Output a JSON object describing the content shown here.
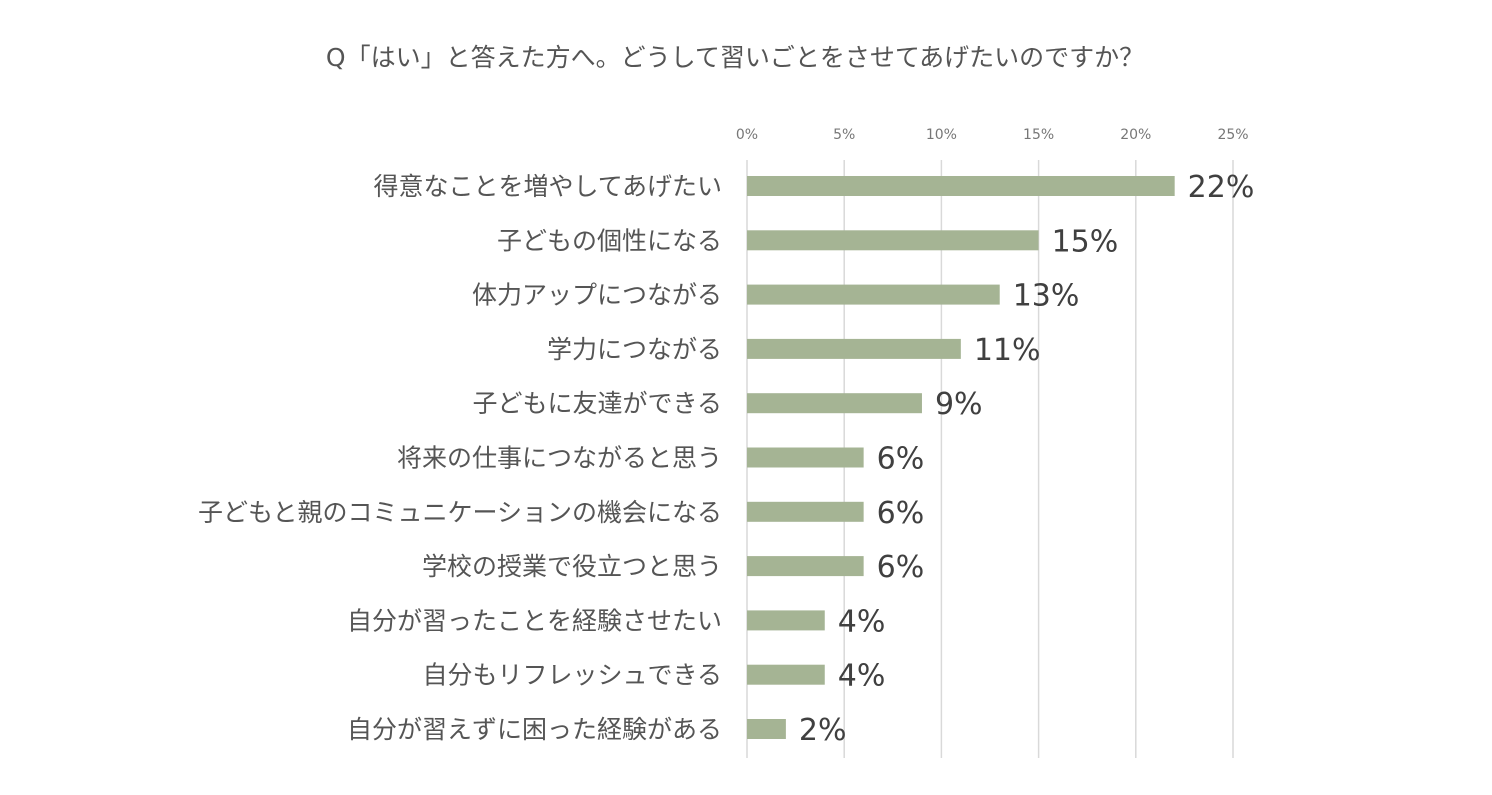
{
  "chart_data": {
    "type": "bar",
    "orientation": "horizontal",
    "title": "Q「はい」と答えた方へ。どうして習いごとをさせてあげたいのですか？",
    "xlabel": "",
    "ylabel": "",
    "xlim": [
      0,
      25
    ],
    "x_ticks": [
      0,
      5,
      10,
      15,
      20,
      25
    ],
    "x_tick_labels": [
      "0%",
      "5%",
      "10%",
      "15%",
      "20%",
      "25%"
    ],
    "axis_position": "top",
    "grid": true,
    "legend": "none",
    "bar_color": "#a5b494",
    "categories": [
      "得意なことを増やしてあげたい",
      "子どもの個性になる",
      "体力アップにつながる",
      "学力につながる",
      "子どもに友達ができる",
      "将来の仕事につながると思う",
      "子どもと親のコミュニケーションの機会になる",
      "学校の授業で役立つと思う",
      "自分が習ったことを経験させたい",
      "自分もリフレッシュできる",
      "自分が習えずに困った経験がある"
    ],
    "values": [
      22,
      15,
      13,
      11,
      9,
      6,
      6,
      6,
      4,
      4,
      2
    ],
    "data_labels": [
      "22%",
      "15%",
      "13%",
      "11%",
      "9%",
      "6%",
      "6%",
      "6%",
      "4%",
      "4%",
      "2%"
    ]
  }
}
